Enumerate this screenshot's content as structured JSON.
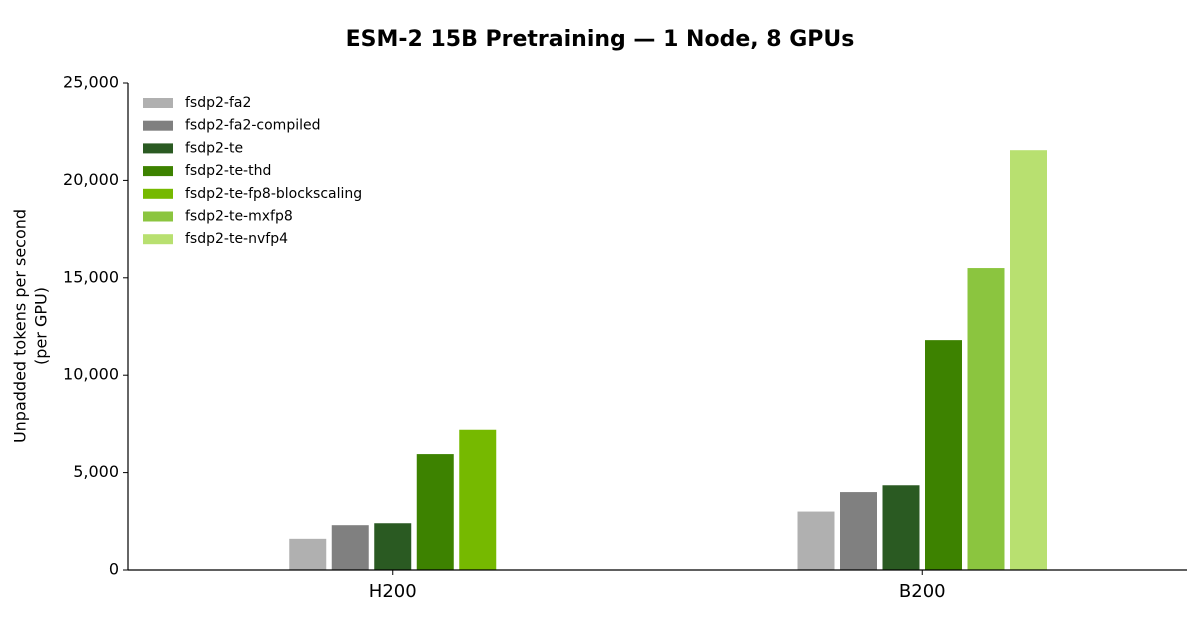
{
  "chart_data": {
    "type": "bar",
    "title": "ESM-2 15B Pretraining — 1 Node, 8 GPUs",
    "y_label": [
      "Unpadded tokens per second",
      "(per GPU)"
    ],
    "categories": [
      "H200",
      "B200"
    ],
    "series": [
      {
        "name": "fsdp2-fa2",
        "color": "#b0b0b0",
        "values": [
          1600,
          3000
        ]
      },
      {
        "name": "fsdp2-fa2-compiled",
        "color": "#808080",
        "values": [
          2300,
          4000
        ]
      },
      {
        "name": "fsdp2-te",
        "color": "#2a5a22",
        "values": [
          2400,
          4350
        ]
      },
      {
        "name": "fsdp2-te-thd",
        "color": "#3d8200",
        "values": [
          5950,
          11800
        ]
      },
      {
        "name": "fsdp2-te-fp8-blockscaling",
        "color": "#76b900",
        "values": [
          7200,
          null
        ]
      },
      {
        "name": "fsdp2-te-mxfp8",
        "color": "#8bc53f",
        "values": [
          null,
          15500
        ]
      },
      {
        "name": "fsdp2-te-nvfp4",
        "color": "#b8e070",
        "values": [
          null,
          21550
        ]
      }
    ],
    "ylim": [
      0,
      25000
    ],
    "yticks": [
      0,
      {
        "value": 5000,
        "label": "5,000"
      },
      {
        "value": 10000,
        "label": "10,000"
      },
      {
        "value": 15000,
        "label": "15,000"
      },
      {
        "value": 20000,
        "label": "20,000"
      },
      {
        "value": 25000,
        "label": "25,000"
      }
    ],
    "legend": "upper left",
    "grid": false
  }
}
